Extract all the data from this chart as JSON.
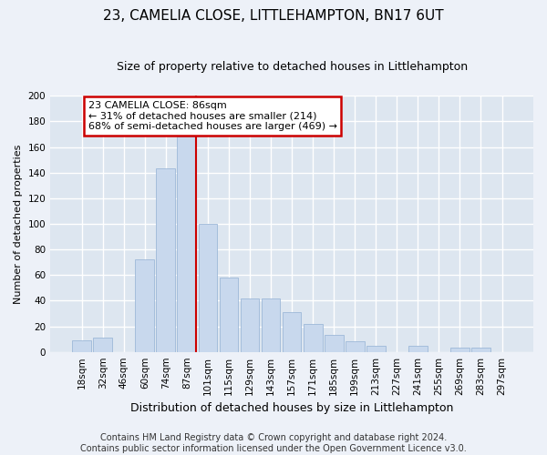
{
  "title": "23, CAMELIA CLOSE, LITTLEHAMPTON, BN17 6UT",
  "subtitle": "Size of property relative to detached houses in Littlehampton",
  "xlabel": "Distribution of detached houses by size in Littlehampton",
  "ylabel": "Number of detached properties",
  "bin_labels": [
    "18sqm",
    "32sqm",
    "46sqm",
    "60sqm",
    "74sqm",
    "87sqm",
    "101sqm",
    "115sqm",
    "129sqm",
    "143sqm",
    "157sqm",
    "171sqm",
    "185sqm",
    "199sqm",
    "213sqm",
    "227sqm",
    "241sqm",
    "255sqm",
    "269sqm",
    "283sqm",
    "297sqm"
  ],
  "bar_values": [
    9,
    11,
    0,
    72,
    143,
    168,
    100,
    58,
    42,
    42,
    31,
    22,
    13,
    8,
    5,
    0,
    5,
    0,
    3,
    3,
    0
  ],
  "bar_color": "#c8d8ed",
  "bar_edge_color": "#9db8d8",
  "marker_line_idx": 5,
  "marker_line_color": "#cc0000",
  "ylim": [
    0,
    200
  ],
  "yticks": [
    0,
    20,
    40,
    60,
    80,
    100,
    120,
    140,
    160,
    180,
    200
  ],
  "annotation_line1": "23 CAMELIA CLOSE: 86sqm",
  "annotation_line2": "← 31% of detached houses are smaller (214)",
  "annotation_line3": "68% of semi-detached houses are larger (469) →",
  "annotation_box_color": "#ffffff",
  "annotation_box_edge": "#cc0000",
  "footer_line1": "Contains HM Land Registry data © Crown copyright and database right 2024.",
  "footer_line2": "Contains public sector information licensed under the Open Government Licence v3.0.",
  "bg_color": "#edf1f8",
  "plot_bg_color": "#dde6f0",
  "grid_color": "#ffffff",
  "title_fontsize": 11,
  "subtitle_fontsize": 9,
  "xlabel_fontsize": 9,
  "ylabel_fontsize": 8,
  "tick_fontsize": 7.5,
  "annotation_fontsize": 8,
  "footer_fontsize": 7
}
